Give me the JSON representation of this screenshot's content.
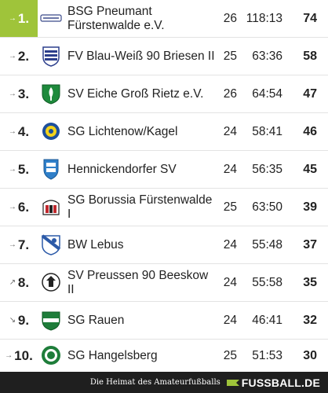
{
  "rows": [
    {
      "trend": "→",
      "rank": "1.",
      "team": "BSG Pneumant Fürstenwalde e.V.",
      "games": "26",
      "goals": "118:13",
      "points": "74",
      "logo": "pneumant-logo"
    },
    {
      "trend": "→",
      "rank": "2.",
      "team": "FV Blau-Weiß 90 Briesen II",
      "games": "25",
      "goals": "63:36",
      "points": "58",
      "logo": "briesen-logo"
    },
    {
      "trend": "→",
      "rank": "3.",
      "team": "SV Eiche Groß Rietz e.V.",
      "games": "26",
      "goals": "64:54",
      "points": "47",
      "logo": "eiche-logo"
    },
    {
      "trend": "→",
      "rank": "4.",
      "team": "SG Lichtenow/Kagel",
      "games": "24",
      "goals": "58:41",
      "points": "46",
      "logo": "lichtenow-logo"
    },
    {
      "trend": "→",
      "rank": "5.",
      "team": "Hennickendorfer SV",
      "games": "24",
      "goals": "56:35",
      "points": "45",
      "logo": "hennickendorf-logo"
    },
    {
      "trend": "→",
      "rank": "6.",
      "team": "SG Borussia Fürstenwalde I",
      "games": "25",
      "goals": "63:50",
      "points": "39",
      "logo": "borussia-logo"
    },
    {
      "trend": "→",
      "rank": "7.",
      "team": "BW Lebus",
      "games": "24",
      "goals": "55:48",
      "points": "37",
      "logo": "lebus-logo"
    },
    {
      "trend": "↗",
      "rank": "8.",
      "team": "SV Preussen 90 Beeskow II",
      "games": "24",
      "goals": "55:58",
      "points": "35",
      "logo": "beeskow-logo"
    },
    {
      "trend": "↘",
      "rank": "9.",
      "team": "SG Rauen",
      "games": "24",
      "goals": "46:41",
      "points": "32",
      "logo": "rauen-logo"
    },
    {
      "trend": "→",
      "rank": "10.",
      "team": "SG Hangelsberg",
      "games": "25",
      "goals": "51:53",
      "points": "30",
      "logo": "hangelsberg-logo"
    }
  ],
  "footer": {
    "tagline": "Die Heimat des Amateurfußballs",
    "brand": "FUSSBALL.DE"
  },
  "colors": {
    "highlight": "#9fc43a",
    "footer_bg": "#1f1f1f"
  }
}
